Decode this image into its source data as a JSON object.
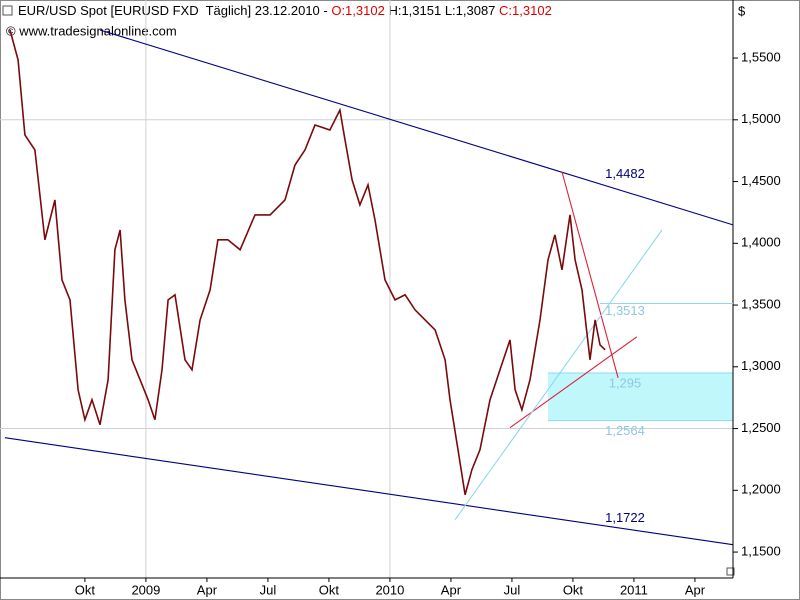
{
  "chart_data": {
    "type": "line",
    "title_parts": [
      {
        "text": "EUR/USD Spot [EURUSD FXD  Täglich] 23.12.2010 - ",
        "color": "#000000"
      },
      {
        "text": "O:1,3102",
        "color": "#e00000"
      },
      {
        "text": " H:1,3151 L:1,3087 ",
        "color": "#000000"
      },
      {
        "text": "C:1,3102",
        "color": "#e00000"
      }
    ],
    "subtitle": "© www.tradesignalonline.com",
    "y_unit": "$",
    "xlim": [
      2008.402,
      2011.406
    ],
    "ylim": [
      1.129,
      1.597
    ],
    "xticks": [
      {
        "value": 2008.75,
        "label": "Okt"
      },
      {
        "value": 2009.0,
        "label": "2009"
      },
      {
        "value": 2009.25,
        "label": "Apr"
      },
      {
        "value": 2009.5,
        "label": "Jul"
      },
      {
        "value": 2009.75,
        "label": "Okt"
      },
      {
        "value": 2010.0,
        "label": "2010"
      },
      {
        "value": 2010.25,
        "label": "Apr"
      },
      {
        "value": 2010.5,
        "label": "Jul"
      },
      {
        "value": 2010.75,
        "label": "Okt"
      },
      {
        "value": 2011.0,
        "label": "2011"
      },
      {
        "value": 2011.25,
        "label": "Apr"
      }
    ],
    "yticks": [
      {
        "value": 1.55,
        "label": "1,5500"
      },
      {
        "value": 1.5,
        "label": "1,5000"
      },
      {
        "value": 1.45,
        "label": "1,4500"
      },
      {
        "value": 1.4,
        "label": "1,4000"
      },
      {
        "value": 1.35,
        "label": "1,3500"
      },
      {
        "value": 1.3,
        "label": "1,3000"
      },
      {
        "value": 1.25,
        "label": "1,2500"
      },
      {
        "value": 1.2,
        "label": "1,2000"
      },
      {
        "value": 1.15,
        "label": "1,1500"
      }
    ],
    "hgrid": [
      1.5,
      1.25
    ],
    "vgrid": [
      2009.0,
      2010.0
    ],
    "series": [
      {
        "color": "#7a0a0a",
        "x": [
          2008.443,
          2008.476,
          2008.504,
          2008.545,
          2008.586,
          2008.627,
          2008.656,
          2008.689,
          2008.722,
          2008.75,
          2008.779,
          2008.812,
          2008.845,
          2008.873,
          2008.894,
          2008.914,
          2008.943,
          2008.976,
          2009.009,
          2009.037,
          2009.066,
          2009.091,
          2009.119,
          2009.16,
          2009.189,
          2009.222,
          2009.263,
          2009.295,
          2009.336,
          2009.386,
          2009.447,
          2009.509,
          2009.57,
          2009.611,
          2009.652,
          2009.693,
          2009.754,
          2009.795,
          2009.816,
          2009.845,
          2009.877,
          2009.91,
          2009.939,
          2009.98,
          2010.021,
          2010.062,
          2010.103,
          2010.144,
          2010.185,
          2010.226,
          2010.246,
          2010.279,
          2010.308,
          2010.336,
          2010.369,
          2010.41,
          2010.451,
          2010.492,
          2010.513,
          2010.541,
          2010.574,
          2010.615,
          2010.648,
          2010.676,
          2010.705,
          2010.738,
          2010.759,
          2010.787,
          2010.82,
          2010.841,
          2010.861,
          2010.882
        ],
        "values": [
          1.5727,
          1.5484,
          1.4877,
          1.4756,
          1.4028,
          1.4351,
          1.3704,
          1.3542,
          1.2814,
          1.2571,
          1.2733,
          1.2531,
          1.2895,
          1.3947,
          1.4108,
          1.3542,
          1.3057,
          1.2895,
          1.2733,
          1.2571,
          1.2976,
          1.3542,
          1.3583,
          1.3057,
          1.2976,
          1.338,
          1.3623,
          1.4028,
          1.4028,
          1.3947,
          1.423,
          1.423,
          1.4351,
          1.4634,
          1.4756,
          1.4958,
          1.4917,
          1.5079,
          1.4837,
          1.4513,
          1.4311,
          1.4473,
          1.4189,
          1.3704,
          1.3542,
          1.3583,
          1.3461,
          1.338,
          1.3299,
          1.3057,
          1.2733,
          1.2329,
          1.1964,
          1.2167,
          1.2329,
          1.2733,
          1.2976,
          1.3218,
          1.2814,
          1.2652,
          1.2895,
          1.338,
          1.3866,
          1.4068,
          1.3785,
          1.423,
          1.3866,
          1.3623,
          1.3057,
          1.338,
          1.3178,
          1.3138
        ]
      }
    ],
    "trendlines": [
      {
        "color": "#00007f",
        "x": [
          2008.812,
          2011.406
        ],
        "values": [
          1.5727,
          1.4149
        ]
      },
      {
        "color": "#00007f",
        "x": [
          2008.422,
          2011.406
        ],
        "values": [
          1.2426,
          1.156
        ]
      },
      {
        "color": "#e0203a",
        "x": [
          2010.705,
          2010.935
        ],
        "values": [
          1.4578,
          1.2911
        ]
      },
      {
        "color": "#e0203a",
        "x": [
          2010.492,
          2011.012
        ],
        "values": [
          1.2507,
          1.3243
        ]
      },
      {
        "color": "#8fd8f0",
        "x": [
          2010.267,
          2011.115
        ],
        "values": [
          1.1762,
          1.4108
        ]
      },
      {
        "color": "#8fd8f0",
        "x": [
          2010.861,
          2011.406
        ],
        "values": [
          1.3513,
          1.3513
        ]
      }
    ],
    "zone": {
      "color": "#bff7fb",
      "x": [
        2010.648,
        2011.406
      ],
      "values": [
        1.295,
        1.2564
      ]
    },
    "annotations": [
      {
        "value": 1.4482,
        "label": "1,4482",
        "color": "#00007f"
      },
      {
        "value": 1.3513,
        "label": "1,3513",
        "color": "#8fc8e0"
      },
      {
        "value": 1.295,
        "label": "1,295",
        "color": "#8fc8e0"
      },
      {
        "value": 1.2564,
        "label": "1,2564",
        "color": "#8fc8e0"
      },
      {
        "value": 1.1722,
        "label": "1,1722",
        "color": "#00007f"
      }
    ]
  }
}
